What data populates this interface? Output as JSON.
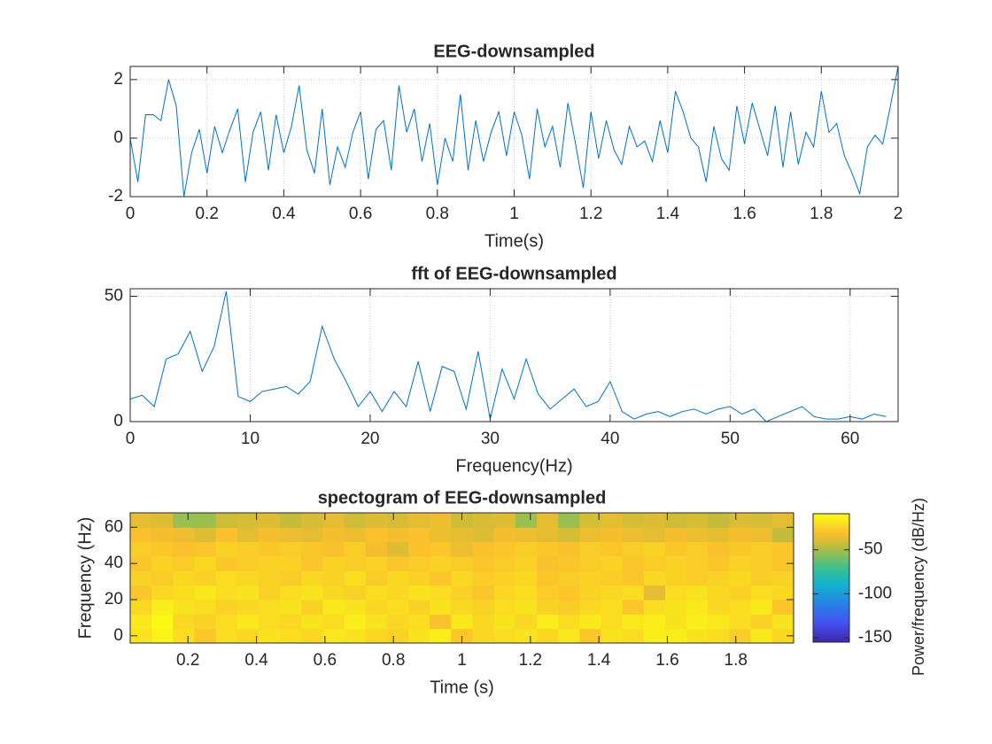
{
  "chart_data": [
    {
      "type": "line",
      "title": "EEG-downsampled",
      "xlabel": "Time(s)",
      "color": "#0072bd",
      "grid": true,
      "xlim": [
        0,
        2
      ],
      "ylim": [
        -2,
        2.45
      ],
      "xticks": [
        0,
        0.2,
        0.4,
        0.6,
        0.8,
        1,
        1.2,
        1.4,
        1.6,
        1.8,
        2
      ],
      "yticks": [
        -2,
        0,
        2
      ],
      "x": [
        0,
        0.02,
        0.04,
        0.06,
        0.08,
        0.1,
        0.12,
        0.14,
        0.16,
        0.18,
        0.2,
        0.22,
        0.24,
        0.26,
        0.28,
        0.3,
        0.32,
        0.34,
        0.36,
        0.38,
        0.4,
        0.42,
        0.44,
        0.46,
        0.48,
        0.5,
        0.52,
        0.54,
        0.56,
        0.58,
        0.6,
        0.62,
        0.64,
        0.66,
        0.68,
        0.7,
        0.72,
        0.74,
        0.76,
        0.78,
        0.8,
        0.82,
        0.84,
        0.86,
        0.88,
        0.9,
        0.92,
        0.94,
        0.96,
        0.98,
        1,
        1.02,
        1.04,
        1.06,
        1.08,
        1.1,
        1.12,
        1.14,
        1.16,
        1.18,
        1.2,
        1.22,
        1.24,
        1.26,
        1.28,
        1.3,
        1.32,
        1.34,
        1.36,
        1.38,
        1.4,
        1.42,
        1.44,
        1.46,
        1.48,
        1.5,
        1.52,
        1.54,
        1.56,
        1.58,
        1.6,
        1.62,
        1.64,
        1.66,
        1.68,
        1.7,
        1.72,
        1.74,
        1.76,
        1.78,
        1.8,
        1.82,
        1.84,
        1.86,
        1.88,
        1.9,
        1.92,
        1.94,
        1.96,
        1.98,
        2
      ],
      "values": [
        0,
        -1.5,
        0.8,
        0.8,
        0.6,
        2,
        1.1,
        -2,
        -0.5,
        0.3,
        -1.2,
        0.4,
        -0.5,
        0.3,
        1,
        -1.5,
        0.2,
        0.9,
        -1.1,
        0.8,
        -0.5,
        0.4,
        1.8,
        -0.4,
        -1.2,
        1,
        -1.6,
        -0.3,
        -1,
        0.2,
        0.9,
        -1.4,
        0.3,
        0.6,
        -1.1,
        1.8,
        0.2,
        1,
        -0.8,
        0.5,
        -1.6,
        0,
        -0.8,
        1.5,
        -1.1,
        0.6,
        -0.8,
        0.2,
        0.9,
        -0.6,
        0.9,
        0.1,
        -1.4,
        1,
        -0.3,
        0.4,
        -1,
        1.2,
        -0.2,
        -1.7,
        0.9,
        -0.7,
        0.6,
        -0.4,
        -0.9,
        0.4,
        -0.3,
        -0.1,
        -0.8,
        0.6,
        -0.5,
        1.6,
        0.9,
        0,
        -0.3,
        -1.5,
        0.4,
        -0.7,
        -1.1,
        1.1,
        -0.2,
        1.2,
        0.3,
        -0.6,
        1.1,
        -1,
        0.9,
        -0.9,
        0.2,
        -0.3,
        1.6,
        0.2,
        0.5,
        -0.6,
        -1.2,
        -1.9,
        -0.3,
        0.1,
        -0.2,
        1.1,
        2.45
      ]
    },
    {
      "type": "line",
      "title": "fft of EEG-downsampled",
      "xlabel": "Frequency(Hz)",
      "color": "#0072bd",
      "grid": true,
      "xlim": [
        0,
        64
      ],
      "ylim": [
        0,
        53
      ],
      "xticks": [
        0,
        10,
        20,
        30,
        40,
        50,
        60
      ],
      "yticks": [
        0,
        50
      ],
      "x": [
        0,
        1,
        2,
        3,
        4,
        5,
        6,
        7,
        8,
        9,
        10,
        11,
        12,
        13,
        14,
        15,
        16,
        17,
        18,
        19,
        20,
        21,
        22,
        23,
        24,
        25,
        26,
        27,
        28,
        29,
        30,
        31,
        32,
        33,
        34,
        35,
        36,
        37,
        38,
        39,
        40,
        41,
        42,
        43,
        44,
        45,
        46,
        47,
        48,
        49,
        50,
        51,
        52,
        53,
        54,
        55,
        56,
        57,
        58,
        59,
        60,
        61,
        62,
        63
      ],
      "values": [
        9,
        10.5,
        6,
        25,
        27,
        36,
        20,
        30,
        52,
        10,
        8,
        12,
        13,
        14,
        11,
        16,
        38,
        25,
        16,
        6,
        12,
        4,
        12,
        6,
        24,
        4,
        22,
        20,
        5,
        28,
        1,
        21,
        9,
        25,
        11,
        5,
        9,
        13,
        6,
        8,
        16,
        4,
        1,
        3,
        4,
        2,
        4,
        5,
        3,
        5,
        6,
        3,
        5,
        0,
        2,
        4,
        6,
        2,
        1,
        1,
        2,
        1,
        3,
        2
      ]
    },
    {
      "type": "heatmap",
      "title": "spectogram of EEG-downsampled",
      "xlabel": "Time (s)",
      "ylabel": "Frequency (Hz)",
      "colorbar_label": "Power/frequency (dB/Hz)",
      "colormap": "parula",
      "xlim": [
        0.03125,
        1.96875
      ],
      "ylim": [
        -4,
        68
      ],
      "clim": [
        -155,
        -9
      ],
      "xticks": [
        0.2,
        0.4,
        0.6,
        0.8,
        1,
        1.2,
        1.4,
        1.6,
        1.8
      ],
      "yticks": [
        0,
        20,
        40,
        60
      ],
      "colorbar_ticks": [
        -150,
        -100,
        -50
      ],
      "x": [
        0.0625,
        0.125,
        0.1875,
        0.25,
        0.3125,
        0.375,
        0.4375,
        0.5,
        0.5625,
        0.625,
        0.6875,
        0.75,
        0.8125,
        0.875,
        0.9375,
        1,
        1.0625,
        1.125,
        1.1875,
        1.25,
        1.3125,
        1.375,
        1.4375,
        1.5,
        1.5625,
        1.625,
        1.6875,
        1.75,
        1.8125,
        1.875,
        1.9375
      ],
      "y": [
        0,
        8,
        16,
        24,
        32,
        40,
        48,
        56,
        64
      ],
      "z": [
        [
          -18,
          -12,
          -20,
          -28,
          -20,
          -22,
          -18,
          -20,
          -22,
          -16,
          -18,
          -22,
          -24,
          -18,
          -14,
          -28,
          -22,
          -20,
          -18,
          -22,
          -16,
          -28,
          -18,
          -20,
          -14,
          -14,
          -18,
          -20,
          -26,
          -16,
          -22
        ],
        [
          -16,
          -10,
          -22,
          -24,
          -20,
          -16,
          -20,
          -22,
          -18,
          -20,
          -14,
          -18,
          -22,
          -20,
          -30,
          -16,
          -22,
          -18,
          -22,
          -14,
          -20,
          -16,
          -20,
          -16,
          -14,
          -18,
          -14,
          -16,
          -20,
          -24,
          -18
        ],
        [
          -22,
          -14,
          -18,
          -20,
          -24,
          -22,
          -20,
          -18,
          -24,
          -16,
          -18,
          -22,
          -20,
          -24,
          -18,
          -22,
          -24,
          -20,
          -18,
          -24,
          -26,
          -22,
          -20,
          -28,
          -20,
          -18,
          -16,
          -22,
          -20,
          -16,
          -28
        ],
        [
          -28,
          -22,
          -20,
          -16,
          -20,
          -18,
          -24,
          -20,
          -18,
          -22,
          -24,
          -20,
          -22,
          -18,
          -20,
          -24,
          -28,
          -22,
          -20,
          -26,
          -28,
          -24,
          -22,
          -20,
          -36,
          -20,
          -18,
          -22,
          -24,
          -20,
          -22
        ],
        [
          -24,
          -26,
          -22,
          -24,
          -20,
          -22,
          -24,
          -26,
          -22,
          -24,
          -20,
          -26,
          -22,
          -24,
          -28,
          -22,
          -26,
          -24,
          -22,
          -28,
          -26,
          -24,
          -26,
          -28,
          -22,
          -24,
          -26,
          -24,
          -22,
          -26,
          -24
        ],
        [
          -28,
          -24,
          -26,
          -22,
          -28,
          -26,
          -24,
          -24,
          -28,
          -24,
          -26,
          -24,
          -28,
          -26,
          -24,
          -26,
          -28,
          -26,
          -24,
          -30,
          -28,
          -26,
          -24,
          -28,
          -26,
          -24,
          -26,
          -28,
          -24,
          -26,
          -28
        ],
        [
          -26,
          -28,
          -30,
          -28,
          -24,
          -26,
          -28,
          -26,
          -28,
          -30,
          -26,
          -32,
          -38,
          -30,
          -28,
          -34,
          -30,
          -28,
          -26,
          -28,
          -30,
          -26,
          -28,
          -26,
          -24,
          -28,
          -26,
          -30,
          -28,
          -26,
          -28
        ],
        [
          -30,
          -32,
          -34,
          -38,
          -30,
          -36,
          -32,
          -34,
          -36,
          -32,
          -34,
          -30,
          -32,
          -30,
          -34,
          -36,
          -38,
          -32,
          -34,
          -36,
          -40,
          -34,
          -32,
          -34,
          -36,
          -32,
          -34,
          -36,
          -32,
          -34,
          -44
        ],
        [
          -36,
          -38,
          -52,
          -52,
          -42,
          -40,
          -38,
          -44,
          -40,
          -36,
          -42,
          -38,
          -40,
          -36,
          -34,
          -42,
          -40,
          -38,
          -52,
          -36,
          -52,
          -40,
          -36,
          -40,
          -38,
          -42,
          -40,
          -44,
          -38,
          -40,
          -36
        ]
      ]
    }
  ]
}
